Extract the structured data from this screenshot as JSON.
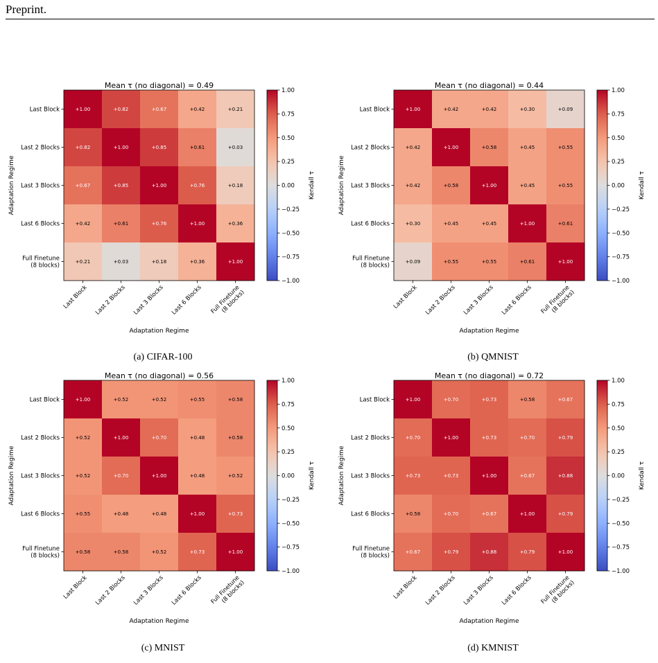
{
  "header": {
    "text": "Preprint."
  },
  "chart_data": [
    {
      "type": "heatmap",
      "title": "Mean τ (no diagonal) = 0.49",
      "caption": "(a) CIFAR-100",
      "xlabel": "Adaptation Regime",
      "ylabel": "Adaptation Regime",
      "categories": [
        "Last Block",
        "Last 2 Blocks",
        "Last 3 Blocks",
        "Last 6 Blocks",
        "Full Finetune\n(8 blocks)"
      ],
      "values": [
        [
          1.0,
          0.82,
          0.67,
          0.42,
          0.21
        ],
        [
          0.82,
          1.0,
          0.85,
          0.61,
          0.03
        ],
        [
          0.67,
          0.85,
          1.0,
          0.76,
          0.18
        ],
        [
          0.42,
          0.61,
          0.76,
          1.0,
          0.36
        ],
        [
          0.21,
          0.03,
          0.18,
          0.36,
          1.0
        ]
      ],
      "cell_labels": [
        [
          "+1.00",
          "+0.82",
          "+0.67",
          "+0.42",
          "+0.21"
        ],
        [
          "+0.82",
          "+1.00",
          "+0.85",
          "+0.61",
          "+0.03"
        ],
        [
          "+0.67",
          "+0.85",
          "+1.00",
          "+0.76",
          "+0.18"
        ],
        [
          "+0.42",
          "+0.61",
          "+0.76",
          "+1.00",
          "+0.36"
        ],
        [
          "+0.21",
          "+0.03",
          "+0.18",
          "+0.36",
          "+1.00"
        ]
      ],
      "colorbar": {
        "label": "Kendall τ",
        "range": [
          -1,
          1
        ],
        "ticks": [
          "1.00",
          "0.75",
          "0.50",
          "0.25",
          "0.00",
          "−0.25",
          "−0.50",
          "−0.75",
          "−1.00"
        ]
      },
      "colormap": "coolwarm"
    },
    {
      "type": "heatmap",
      "title": "Mean τ (no diagonal) = 0.44",
      "caption": "(b) QMNIST",
      "xlabel": "Adaptation Regime",
      "ylabel": "Adaptation Regime",
      "categories": [
        "Last Block",
        "Last 2 Blocks",
        "Last 3 Blocks",
        "Last 6 Blocks",
        "Full Finetune\n(8 blocks)"
      ],
      "values": [
        [
          1.0,
          0.42,
          0.42,
          0.3,
          0.09
        ],
        [
          0.42,
          1.0,
          0.58,
          0.45,
          0.55
        ],
        [
          0.42,
          0.58,
          1.0,
          0.45,
          0.55
        ],
        [
          0.3,
          0.45,
          0.45,
          1.0,
          0.61
        ],
        [
          0.09,
          0.55,
          0.55,
          0.61,
          1.0
        ]
      ],
      "cell_labels": [
        [
          "+1.00",
          "+0.42",
          "+0.42",
          "+0.30",
          "+0.09"
        ],
        [
          "+0.42",
          "+1.00",
          "+0.58",
          "+0.45",
          "+0.55"
        ],
        [
          "+0.42",
          "+0.58",
          "+1.00",
          "+0.45",
          "+0.55"
        ],
        [
          "+0.30",
          "+0.45",
          "+0.45",
          "+1.00",
          "+0.61"
        ],
        [
          "+0.09",
          "+0.55",
          "+0.55",
          "+0.61",
          "+1.00"
        ]
      ],
      "colorbar": {
        "label": "Kendall τ",
        "range": [
          -1,
          1
        ],
        "ticks": [
          "1.00",
          "0.75",
          "0.50",
          "0.25",
          "0.00",
          "−0.25",
          "−0.50",
          "−0.75",
          "−1.00"
        ]
      },
      "colormap": "coolwarm"
    },
    {
      "type": "heatmap",
      "title": "Mean τ (no diagonal) = 0.56",
      "caption": "(c) MNIST",
      "xlabel": "Adaptation Regime",
      "ylabel": "Adaptation Regime",
      "categories": [
        "Last Block",
        "Last 2 Blocks",
        "Last 3 Blocks",
        "Last 6 Blocks",
        "Full Finetune\n(8 blocks)"
      ],
      "values": [
        [
          1.0,
          0.52,
          0.52,
          0.55,
          0.58
        ],
        [
          0.52,
          1.0,
          0.7,
          0.48,
          0.58
        ],
        [
          0.52,
          0.7,
          1.0,
          0.48,
          0.52
        ],
        [
          0.55,
          0.48,
          0.48,
          1.0,
          0.73
        ],
        [
          0.58,
          0.58,
          0.52,
          0.73,
          1.0
        ]
      ],
      "cell_labels": [
        [
          "+1.00",
          "+0.52",
          "+0.52",
          "+0.55",
          "+0.58"
        ],
        [
          "+0.52",
          "+1.00",
          "+0.70",
          "+0.48",
          "+0.58"
        ],
        [
          "+0.52",
          "+0.70",
          "+1.00",
          "+0.48",
          "+0.52"
        ],
        [
          "+0.55",
          "+0.48",
          "+0.48",
          "+1.00",
          "+0.73"
        ],
        [
          "+0.58",
          "+0.58",
          "+0.52",
          "+0.73",
          "+1.00"
        ]
      ],
      "colorbar": {
        "label": "Kendall τ",
        "range": [
          -1,
          1
        ],
        "ticks": [
          "1.00",
          "0.75",
          "0.50",
          "0.25",
          "0.00",
          "−0.25",
          "−0.50",
          "−0.75",
          "−1.00"
        ]
      },
      "colormap": "coolwarm"
    },
    {
      "type": "heatmap",
      "title": "Mean τ (no diagonal) = 0.72",
      "caption": "(d) KMNIST",
      "xlabel": "Adaptation Regime",
      "ylabel": "Adaptation Regime",
      "categories": [
        "Last Block",
        "Last 2 Blocks",
        "Last 3 Blocks",
        "Last 6 Blocks",
        "Full Finetune\n(8 blocks)"
      ],
      "values": [
        [
          1.0,
          0.7,
          0.73,
          0.58,
          0.67
        ],
        [
          0.7,
          1.0,
          0.73,
          0.7,
          0.79
        ],
        [
          0.73,
          0.73,
          1.0,
          0.67,
          0.88
        ],
        [
          0.58,
          0.7,
          0.67,
          1.0,
          0.79
        ],
        [
          0.67,
          0.79,
          0.88,
          0.79,
          1.0
        ]
      ],
      "cell_labels": [
        [
          "+1.00",
          "+0.70",
          "+0.73",
          "+0.58",
          "+0.67"
        ],
        [
          "+0.70",
          "+1.00",
          "+0.73",
          "+0.70",
          "+0.79"
        ],
        [
          "+0.73",
          "+0.73",
          "+1.00",
          "+0.67",
          "+0.88"
        ],
        [
          "+0.58",
          "+0.70",
          "+0.67",
          "+1.00",
          "+0.79"
        ],
        [
          "+0.67",
          "+0.79",
          "+0.88",
          "+0.79",
          "+1.00"
        ]
      ],
      "colorbar": {
        "label": "Kendall τ",
        "range": [
          -1,
          1
        ],
        "ticks": [
          "1.00",
          "0.75",
          "0.50",
          "0.25",
          "0.00",
          "−0.25",
          "−0.50",
          "−0.75",
          "−1.00"
        ]
      },
      "colormap": "coolwarm"
    }
  ]
}
